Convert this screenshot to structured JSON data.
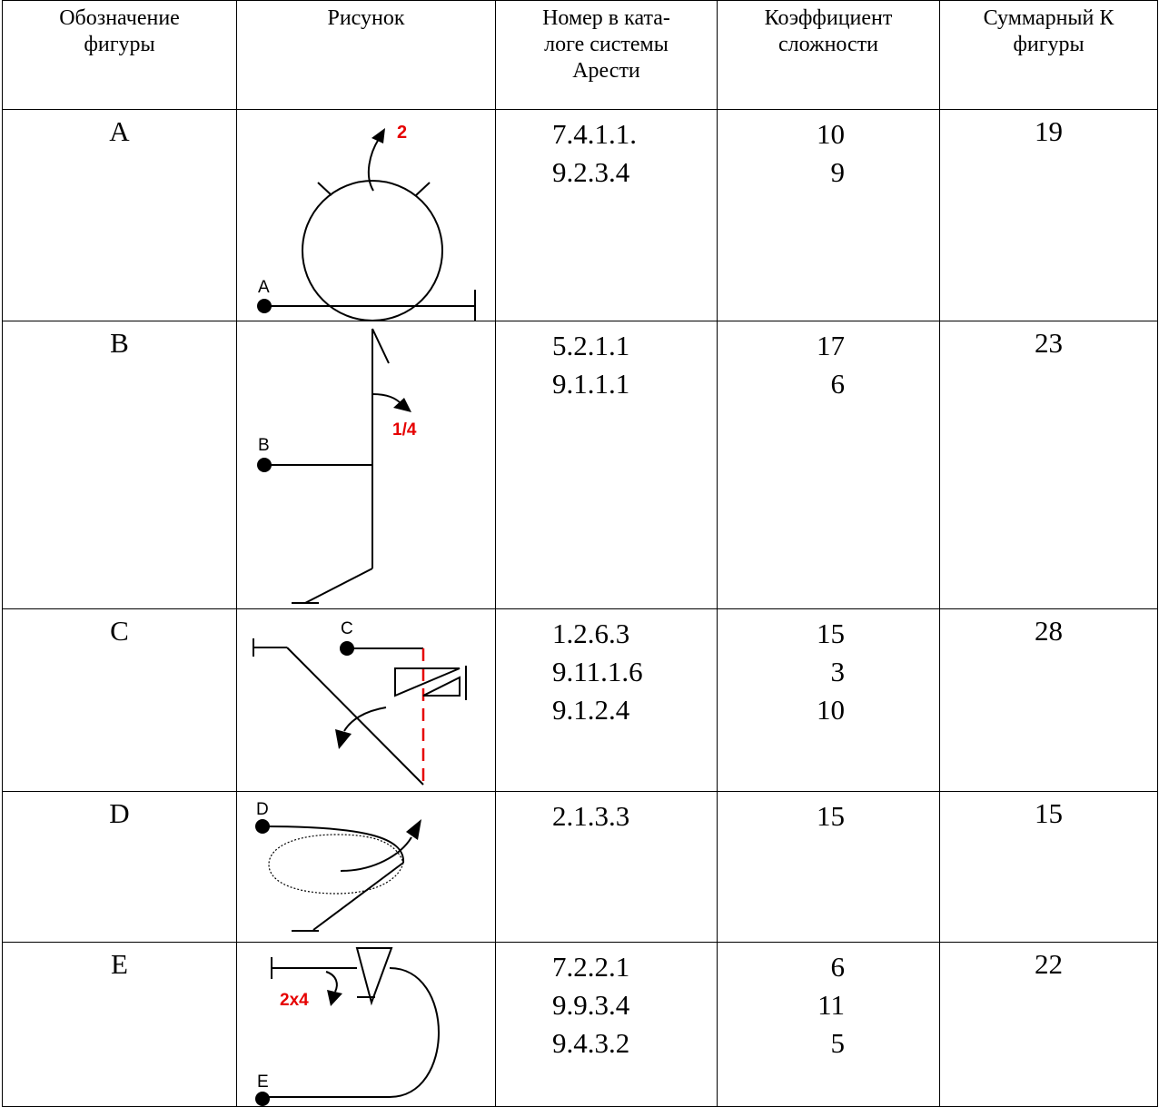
{
  "headers": [
    "Обозначение\nфигуры",
    "Рисунок",
    "Номер в ката-\nлоге системы\nАрести",
    "Коэффициент\nсложности",
    "Суммарный К\nфигуры"
  ],
  "rows": [
    {
      "label": "A",
      "codes": [
        "7.4.1.1.",
        "9.2.3.4"
      ],
      "coefs": [
        "10",
        "9"
      ],
      "total": "19",
      "pic": {
        "start": "A",
        "marks": [
          "2"
        ]
      }
    },
    {
      "label": "B",
      "codes": [
        "5.2.1.1",
        "9.1.1.1"
      ],
      "coefs": [
        "17",
        "6"
      ],
      "total": "23",
      "pic": {
        "start": "B",
        "marks": [
          "1/4"
        ]
      }
    },
    {
      "label": "C",
      "codes": [
        "1.2.6.3",
        "9.11.1.6",
        "9.1.2.4"
      ],
      "coefs": [
        "15",
        "3",
        "10"
      ],
      "total": "28",
      "pic": {
        "start": "C",
        "marks": []
      }
    },
    {
      "label": "D",
      "codes": [
        "2.1.3.3"
      ],
      "coefs": [
        "15"
      ],
      "total": "15",
      "pic": {
        "start": "D",
        "marks": []
      }
    },
    {
      "label": "E",
      "codes": [
        "7.2.2.1",
        "9.9.3.4",
        "9.4.3.2"
      ],
      "coefs": [
        "6",
        "11",
        "5"
      ],
      "total": "22",
      "pic": {
        "start": "E",
        "marks": [
          "2x4"
        ]
      }
    }
  ],
  "colors": {
    "line": "#000000",
    "accent": "#e60000"
  }
}
